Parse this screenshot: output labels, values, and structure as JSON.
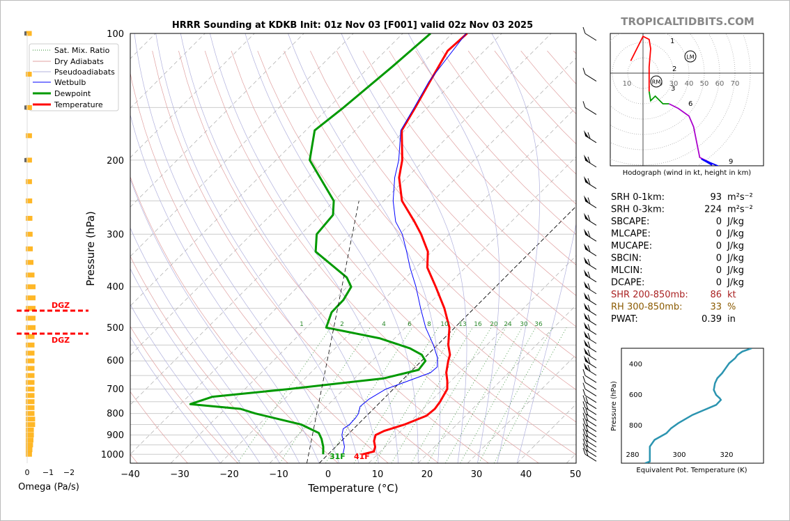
{
  "header": {
    "title": "HRRR Sounding at KDKB Init: 01z Nov 03 [F001] valid 02z Nov 03 2025",
    "site": "TROPICALTIDBITS.COM"
  },
  "colors": {
    "temperature": "#ff0000",
    "dewpoint": "#009900",
    "wetbulb": "#0000ff",
    "dgz": "#ff0000",
    "omega": "#ffaa00",
    "theta_e": "#2b94b0",
    "hodo_0_3": "#ff0000",
    "hodo_3_6": "#009900",
    "hodo_6_9": "#aa00cc",
    "hodo_9_12": "#0000ff",
    "shr": "#aa2222",
    "rh": "#8b5a00",
    "site": "#888888"
  },
  "skewt": {
    "ylabel": "Pressure (hPa)",
    "xlabel": "Temperature (°C)",
    "pressure_ticks": [
      "100",
      "200",
      "300",
      "400",
      "500",
      "600",
      "700",
      "800",
      "900",
      "1000"
    ],
    "temp_ticks": [
      "−40",
      "−30",
      "−20",
      "−10",
      "0",
      "10",
      "20",
      "30",
      "40",
      "50"
    ],
    "mixing_ratio_labels": [
      "1",
      "2",
      "4",
      "6",
      "8",
      "10",
      "13",
      "16",
      "20",
      "24",
      "30",
      "36"
    ],
    "surface_temp_label": "41F",
    "surface_dewpoint_label": "31F",
    "legend": [
      {
        "label": "Sat. Mix. Ratio",
        "style": "dotted-green"
      },
      {
        "label": "Dry Adiabats",
        "style": "solid-pink"
      },
      {
        "label": "Pseudoadiabats",
        "style": "solid-lavender"
      },
      {
        "label": "Wetbulb",
        "style": "solid-blue"
      },
      {
        "label": "Dewpoint",
        "style": "solid-green"
      },
      {
        "label": "Temperature",
        "style": "solid-red"
      }
    ]
  },
  "omega": {
    "xlabel": "Omega (Pa/s)",
    "ticks": [
      "0",
      "−1",
      "−2"
    ],
    "dgz_label_top": "DGZ",
    "dgz_label_bottom": "DGZ"
  },
  "hodograph": {
    "caption": "Hodograph (wind in kt, height in km)",
    "ring_labels": [
      "10",
      "20",
      "30",
      "40",
      "50",
      "60",
      "70"
    ],
    "height_labels": [
      "1",
      "2",
      "3",
      "6",
      "9"
    ],
    "lm_label": "LM",
    "rm_label": "RM"
  },
  "stats": [
    {
      "name": "SRH 0-1km:",
      "value": "93",
      "unit": "m²s⁻²",
      "style": "normal"
    },
    {
      "name": "SRH 0-3km:",
      "value": "224",
      "unit": "m²s⁻²",
      "style": "normal"
    },
    {
      "name": "SBCAPE:",
      "value": "0",
      "unit": "J/kg",
      "style": "normal"
    },
    {
      "name": "MLCAPE:",
      "value": "0",
      "unit": "J/kg",
      "style": "normal"
    },
    {
      "name": "MUCAPE:",
      "value": "0",
      "unit": "J/kg",
      "style": "normal"
    },
    {
      "name": "SBCIN:",
      "value": "0",
      "unit": "J/kg",
      "style": "normal"
    },
    {
      "name": "MLCIN:",
      "value": "0",
      "unit": "J/kg",
      "style": "normal"
    },
    {
      "name": "DCAPE:",
      "value": "0",
      "unit": "J/kg",
      "style": "normal"
    },
    {
      "name": "SHR 200-850mb:",
      "value": "86",
      "unit": "kt",
      "style": "shr"
    },
    {
      "name": "RH 300-850mb:",
      "value": "33",
      "unit": "%",
      "style": "rh"
    },
    {
      "name": "PWAT:",
      "value": "0.39",
      "unit": "in",
      "style": "normal"
    }
  ],
  "theta_e_panel": {
    "ylabel": "Pressure (hPa)",
    "xlabel": "Equivalent Pot. Temperature (K)",
    "y_ticks": [
      "400",
      "600",
      "800"
    ],
    "x_ticks": [
      "280",
      "300",
      "320"
    ]
  },
  "chart_data": [
    {
      "type": "line",
      "title": "HRRR Sounding at KDKB Init: 01z Nov 03 [F001] valid 02z Nov 03 2025",
      "xlabel": "Temperature (°C)",
      "ylabel": "Pressure (hPa)",
      "xlim": [
        -40,
        50
      ],
      "ylim": [
        1050,
        100
      ],
      "y_scale": "log",
      "x_skewed": true,
      "grid": true,
      "legend_position": "top-left",
      "series": [
        {
          "name": "Temperature",
          "color": "#ff0000",
          "points": [
            [
              1000,
              7.0
            ],
            [
              985,
              8.7
            ],
            [
              960,
              8.0
            ],
            [
              930,
              6.6
            ],
            [
              900,
              5.7
            ],
            [
              880,
              6.6
            ],
            [
              850,
              9.4
            ],
            [
              810,
              12.1
            ],
            [
              780,
              12.4
            ],
            [
              750,
              12.0
            ],
            [
              700,
              10.9
            ],
            [
              670,
              9.3
            ],
            [
              640,
              7.4
            ],
            [
              600,
              5.4
            ],
            [
              580,
              4.5
            ],
            [
              550,
              2.2
            ],
            [
              500,
              -1.1
            ],
            [
              450,
              -6.0
            ],
            [
              400,
              -12.1
            ],
            [
              360,
              -17.7
            ],
            [
              330,
              -20.8
            ],
            [
              300,
              -25.7
            ],
            [
              280,
              -29.6
            ],
            [
              250,
              -36.3
            ],
            [
              220,
              -41.6
            ],
            [
              200,
              -44.5
            ],
            [
              170,
              -50.6
            ],
            [
              150,
              -52.5
            ],
            [
              130,
              -54.8
            ],
            [
              110,
              -57.4
            ],
            [
              100,
              -57.0
            ]
          ]
        },
        {
          "name": "Dewpoint",
          "color": "#009900",
          "points": [
            [
              1000,
              -1.0
            ],
            [
              960,
              -2.5
            ],
            [
              920,
              -4.4
            ],
            [
              890,
              -6.2
            ],
            [
              850,
              -11.4
            ],
            [
              800,
              -23.0
            ],
            [
              780,
              -26.9
            ],
            [
              760,
              -38.0
            ],
            [
              730,
              -35.0
            ],
            [
              700,
              -21.2
            ],
            [
              660,
              -4.1
            ],
            [
              630,
              1.2
            ],
            [
              600,
              0.8
            ],
            [
              580,
              -1.2
            ],
            [
              560,
              -4.9
            ],
            [
              530,
              -13.1
            ],
            [
              500,
              -26.0
            ],
            [
              460,
              -28.0
            ],
            [
              430,
              -28.1
            ],
            [
              400,
              -29.2
            ],
            [
              380,
              -32.0
            ],
            [
              330,
              -43.5
            ],
            [
              300,
              -46.8
            ],
            [
              270,
              -47.4
            ],
            [
              250,
              -50.1
            ],
            [
              200,
              -63.2
            ],
            [
              170,
              -68.2
            ],
            [
              150,
              -67.0
            ],
            [
              120,
              -65.4
            ],
            [
              100,
              -64.4
            ]
          ]
        },
        {
          "name": "Wetbulb",
          "color": "#0000ff",
          "points": [
            [
              1000,
              3.0
            ],
            [
              960,
              1.8
            ],
            [
              930,
              0.4
            ],
            [
              900,
              -1.1
            ],
            [
              870,
              -2.1
            ],
            [
              850,
              -1.7
            ],
            [
              820,
              -1.8
            ],
            [
              800,
              -2.1
            ],
            [
              770,
              -3.2
            ],
            [
              740,
              -2.9
            ],
            [
              700,
              -1.5
            ],
            [
              670,
              1.3
            ],
            [
              640,
              4.2
            ],
            [
              620,
              4.4
            ],
            [
              590,
              2.6
            ],
            [
              550,
              -0.8
            ],
            [
              500,
              -5.9
            ],
            [
              450,
              -10.8
            ],
            [
              400,
              -16.1
            ],
            [
              360,
              -21.2
            ],
            [
              330,
              -25.1
            ],
            [
              300,
              -29.5
            ],
            [
              280,
              -33.4
            ],
            [
              250,
              -38.1
            ],
            [
              220,
              -42.5
            ],
            [
              200,
              -45.2
            ],
            [
              170,
              -50.8
            ],
            [
              150,
              -52.7
            ],
            [
              130,
              -55.0
            ],
            [
              100,
              -57.2
            ]
          ]
        }
      ]
    },
    {
      "type": "bar",
      "title": "",
      "xlabel": "Omega (Pa/s)",
      "xlim": [
        0.3,
        -2.3
      ],
      "orientation": "horizontal",
      "pressure": [
        1000,
        975,
        950,
        925,
        900,
        875,
        850,
        825,
        800,
        775,
        750,
        725,
        700,
        675,
        650,
        625,
        600,
        575,
        550,
        525,
        500,
        475,
        450,
        425,
        400,
        375,
        350,
        325,
        300,
        275,
        250,
        225,
        200,
        175,
        150,
        125,
        100
      ],
      "values": [
        -0.03,
        -0.05,
        -0.08,
        -0.1,
        -0.12,
        -0.12,
        -0.18,
        -0.18,
        -0.15,
        -0.15,
        -0.15,
        -0.15,
        -0.15,
        -0.15,
        -0.15,
        -0.15,
        -0.15,
        -0.15,
        -0.15,
        -0.15,
        -0.2,
        -0.2,
        -0.2,
        -0.2,
        -0.2,
        -0.15,
        -0.1,
        -0.07,
        -0.06,
        -0.05,
        -0.04,
        -0.03,
        -0.03,
        -0.03,
        -0.03,
        -0.02,
        -0.02
      ],
      "dgz_pressures": [
        455,
        515
      ]
    },
    {
      "type": "line",
      "title": "Hodograph (wind in kt, height in km)",
      "rings_kt": [
        10,
        20,
        30,
        40,
        50,
        60,
        70
      ],
      "segments": [
        {
          "name": "0-3 km",
          "color": "#ff0000",
          "points": [
            [
              -8,
              8
            ],
            [
              0,
              24
            ],
            [
              4,
              22
            ],
            [
              5,
              16
            ],
            [
              4,
              4
            ],
            [
              4,
              -8
            ],
            [
              4,
              -12
            ]
          ]
        },
        {
          "name": "3-6 km",
          "color": "#009900",
          "points": [
            [
              4,
              -12
            ],
            [
              5,
              -18
            ],
            [
              8,
              -15
            ],
            [
              13,
              -20
            ],
            [
              17,
              -20
            ]
          ]
        },
        {
          "name": "6-9 km",
          "color": "#aa00cc",
          "points": [
            [
              17,
              -20
            ],
            [
              23,
              -23
            ],
            [
              30,
              -28
            ],
            [
              33,
              -35
            ],
            [
              35,
              -45
            ],
            [
              37,
              -55
            ],
            [
              43,
              -58
            ],
            [
              45,
              -60
            ]
          ]
        },
        {
          "name": "9-12 km",
          "color": "#0000ff",
          "points": [
            [
              45,
              -60
            ],
            [
              38,
              -56
            ],
            [
              50,
              -61
            ],
            [
              57,
              -61
            ]
          ]
        }
      ],
      "lm": [
        30,
        11
      ],
      "rm": [
        8,
        -6
      ]
    },
    {
      "type": "line",
      "title": "",
      "xlabel": "Equivalent Pot. Temperature (K)",
      "ylabel": "Pressure (hPa)",
      "xlim": [
        278,
        338
      ],
      "ylim": [
        1000,
        310
      ],
      "series": [
        {
          "name": "Theta-E",
          "color": "#2b94b0",
          "points": [
            [
              1000,
              288
            ],
            [
              990,
              290
            ],
            [
              950,
              290
            ],
            [
              930,
              290
            ],
            [
              900,
              290
            ],
            [
              860,
              292
            ],
            [
              820,
              297
            ],
            [
              790,
              299
            ],
            [
              760,
              302
            ],
            [
              710,
              308
            ],
            [
              680,
              313
            ],
            [
              650,
              318
            ],
            [
              620,
              320
            ],
            [
              610,
              319.5
            ],
            [
              590,
              318
            ],
            [
              560,
              317
            ],
            [
              520,
              317.5
            ],
            [
              490,
              318.5
            ],
            [
              460,
              320.5
            ],
            [
              430,
              322
            ],
            [
              400,
              323.5
            ],
            [
              370,
              326
            ],
            [
              350,
              327
            ],
            [
              330,
              329
            ],
            [
              310,
              333
            ]
          ]
        }
      ]
    }
  ]
}
